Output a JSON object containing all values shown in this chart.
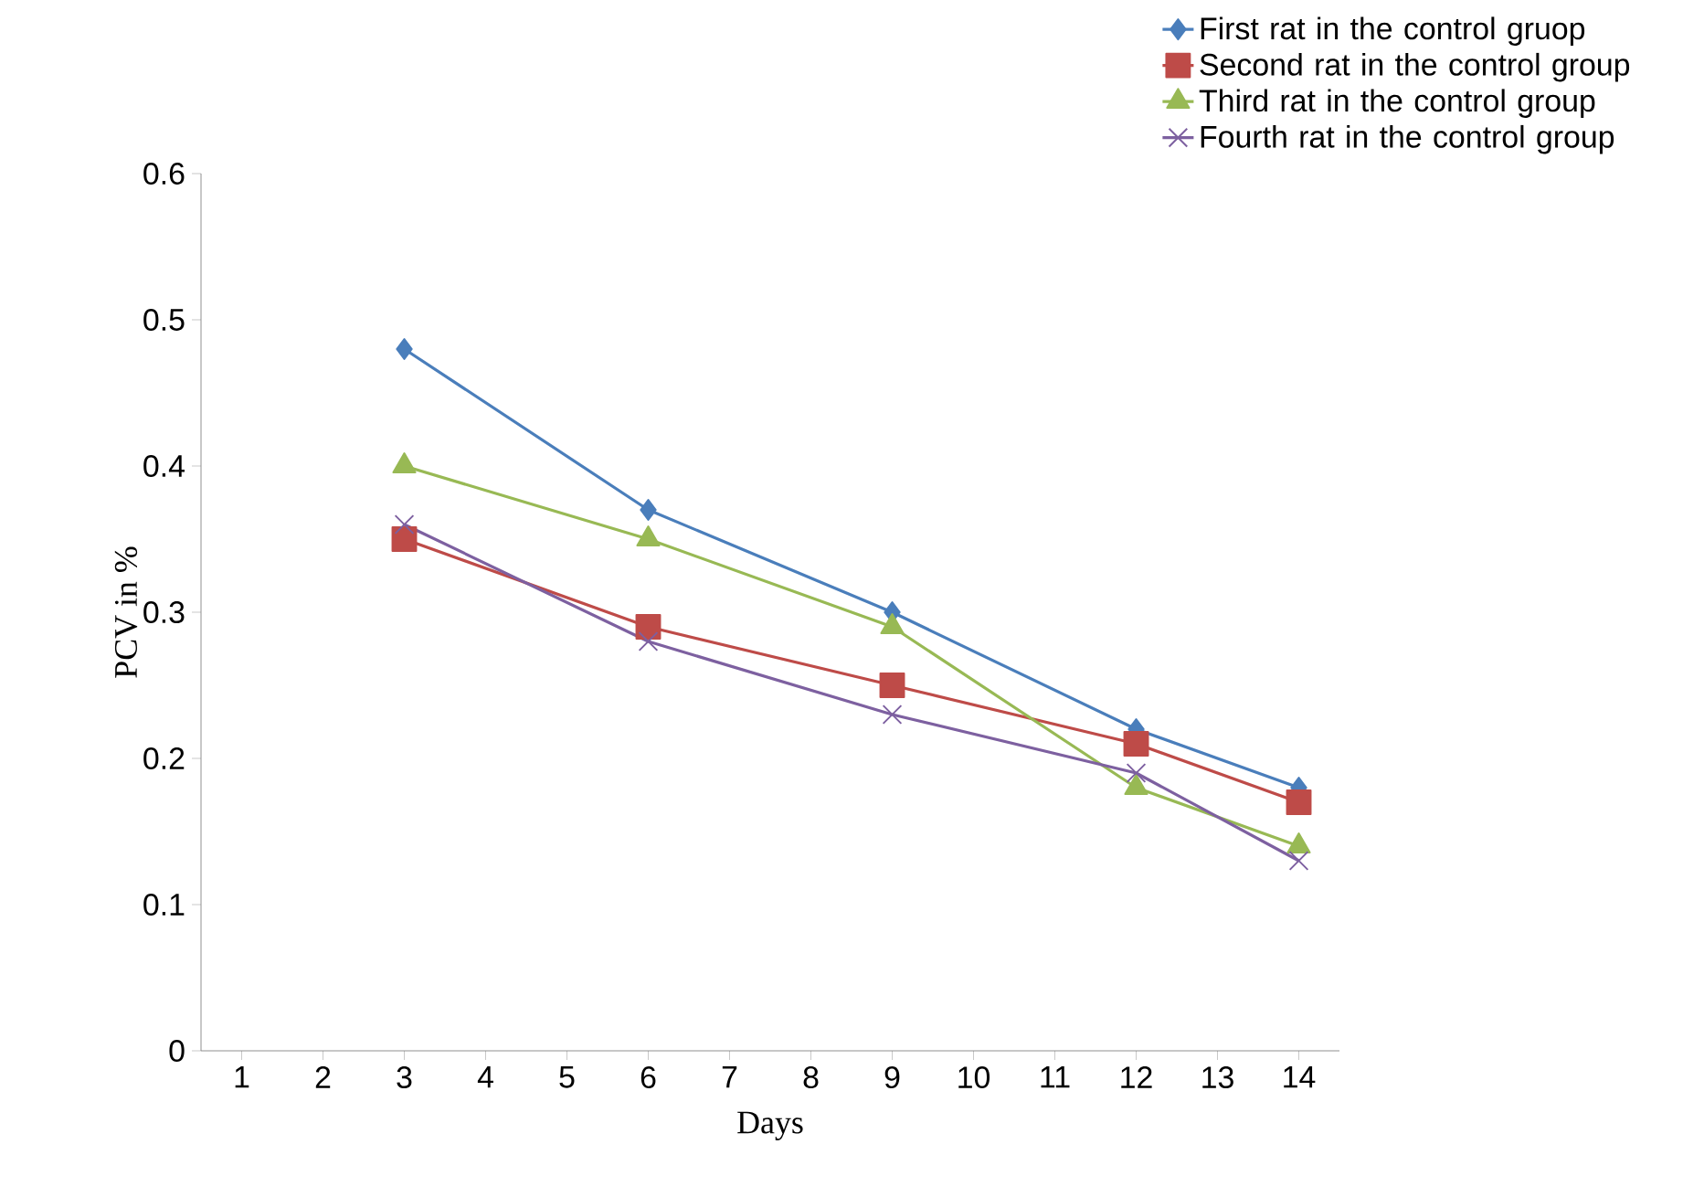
{
  "chart_data": {
    "type": "line",
    "xlabel": "Days",
    "ylabel": "PCV in %",
    "xlim": [
      0.5,
      14.5
    ],
    "xticks": [
      1,
      2,
      3,
      4,
      5,
      6,
      7,
      8,
      9,
      10,
      11,
      12,
      13,
      14
    ],
    "ylim": [
      0,
      0.6
    ],
    "yticks": [
      0,
      0.1,
      0.2,
      0.3,
      0.4,
      0.5,
      0.6
    ],
    "grid": false,
    "legend": "top right",
    "series": [
      {
        "name": "First rat in the control gruop",
        "color": "#4a7ebb",
        "marker": "diamond",
        "x": [
          3,
          6,
          9,
          12,
          14
        ],
        "values": [
          0.48,
          0.37,
          0.3,
          0.22,
          0.18
        ]
      },
      {
        "name": "Second rat in the control group",
        "color": "#be4b48",
        "marker": "square",
        "x": [
          3,
          6,
          9,
          12,
          14
        ],
        "values": [
          0.35,
          0.29,
          0.25,
          0.21,
          0.17
        ]
      },
      {
        "name": "Third rat in the control group",
        "color": "#98b954",
        "marker": "triangle",
        "x": [
          3,
          6,
          9,
          12,
          14
        ],
        "values": [
          0.4,
          0.35,
          0.29,
          0.18,
          0.14
        ]
      },
      {
        "name": "Fourth rat in the control group",
        "color": "#7d60a0",
        "marker": "cross",
        "x": [
          3,
          6,
          9,
          12,
          14
        ],
        "values": [
          0.36,
          0.28,
          0.23,
          0.19,
          0.13
        ]
      }
    ]
  }
}
